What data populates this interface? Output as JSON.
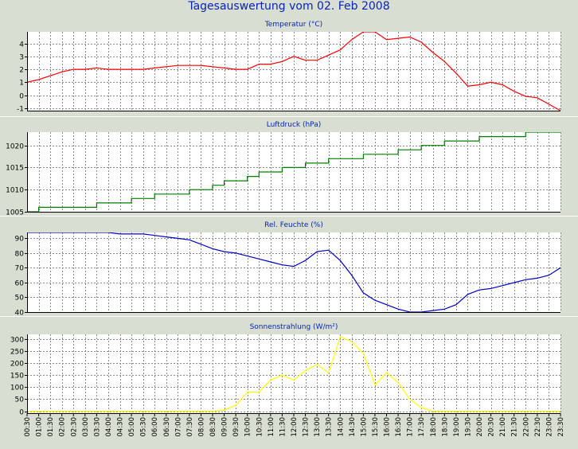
{
  "page": {
    "title": "Tagesauswertung vom 02. Feb 2008"
  },
  "colors": {
    "title": "#0a23b8",
    "background": "#d8dfd2",
    "plot_bg": "#ffffff"
  },
  "x_labels": [
    "00:30",
    "01:00",
    "01:30",
    "02:00",
    "02:30",
    "03:00",
    "03:30",
    "04:00",
    "04:30",
    "05:00",
    "05:30",
    "06:00",
    "06:30",
    "07:00",
    "07:30",
    "08:00",
    "08:30",
    "09:00",
    "09:30",
    "10:00",
    "10:30",
    "11:00",
    "11:30",
    "12:00",
    "12:30",
    "13:00",
    "13:30",
    "14:00",
    "14:30",
    "15:00",
    "15:30",
    "16:00",
    "16:30",
    "17:00",
    "17:30",
    "18:00",
    "18:30",
    "19:00",
    "19:30",
    "20:00",
    "20:30",
    "21:00",
    "21:30",
    "22:00",
    "22:30",
    "23:00",
    "23:30"
  ],
  "chart_data": [
    {
      "type": "line",
      "title": "Temperatur (°C)",
      "color": "#ff0000",
      "ylim": [
        -1.2,
        4.9
      ],
      "yticks": [
        -1,
        0,
        1,
        2,
        3,
        4
      ],
      "grid": true,
      "values": [
        1.0,
        1.2,
        1.5,
        1.8,
        2.0,
        2.0,
        2.1,
        2.0,
        2.0,
        2.0,
        2.0,
        2.1,
        2.2,
        2.3,
        2.3,
        2.3,
        2.2,
        2.1,
        2.0,
        2.0,
        2.4,
        2.4,
        2.6,
        3.0,
        2.7,
        2.7,
        3.1,
        3.5,
        4.3,
        4.9,
        4.9,
        4.3,
        4.4,
        4.5,
        4.1,
        3.3,
        2.6,
        1.7,
        0.7,
        0.8,
        1.0,
        0.8,
        0.3,
        -0.1,
        -0.2,
        -0.7,
        -1.2
      ]
    },
    {
      "type": "line",
      "title": "Luftdruck (hPa)",
      "color": "#008000",
      "step": true,
      "ylim": [
        1005,
        1023
      ],
      "yticks": [
        1005,
        1010,
        1015,
        1020
      ],
      "grid": true,
      "values": [
        1005,
        1006,
        1006,
        1006,
        1006,
        1006,
        1007,
        1007,
        1007,
        1008,
        1008,
        1009,
        1009,
        1009,
        1010,
        1010,
        1011,
        1012,
        1012,
        1013,
        1014,
        1014,
        1015,
        1015,
        1016,
        1016,
        1017,
        1017,
        1017,
        1018,
        1018,
        1018,
        1019,
        1019,
        1020,
        1020,
        1021,
        1021,
        1021,
        1022,
        1022,
        1022,
        1022,
        1023,
        1023,
        1023,
        1023
      ]
    },
    {
      "type": "line",
      "title": "Rel. Feuchte (%)",
      "color": "#0000cc",
      "ylim": [
        40,
        94
      ],
      "yticks": [
        40,
        50,
        60,
        70,
        80,
        90
      ],
      "grid": true,
      "values": [
        94,
        94,
        94,
        94,
        94,
        94,
        94,
        94,
        93,
        93,
        93,
        92,
        91,
        90,
        89,
        86,
        83,
        81,
        80,
        78,
        76,
        74,
        72,
        71,
        75,
        81,
        82,
        75,
        65,
        53,
        48,
        45,
        42,
        40,
        40,
        41,
        42,
        45,
        52,
        55,
        56,
        58,
        60,
        62,
        63,
        65,
        70
      ]
    },
    {
      "type": "line",
      "title": "Sonnenstrahlung (W/m²)",
      "color": "#ffff00",
      "ylim": [
        -8,
        320
      ],
      "yticks": [
        0,
        50,
        100,
        150,
        200,
        250,
        300
      ],
      "grid": true,
      "values": [
        0,
        0,
        0,
        0,
        0,
        0,
        0,
        0,
        0,
        0,
        0,
        0,
        0,
        0,
        0,
        0,
        0,
        5,
        25,
        80,
        80,
        130,
        150,
        130,
        170,
        195,
        160,
        310,
        290,
        240,
        110,
        160,
        120,
        50,
        15,
        0,
        0,
        0,
        0,
        0,
        0,
        0,
        0,
        0,
        0,
        0,
        0
      ]
    }
  ]
}
